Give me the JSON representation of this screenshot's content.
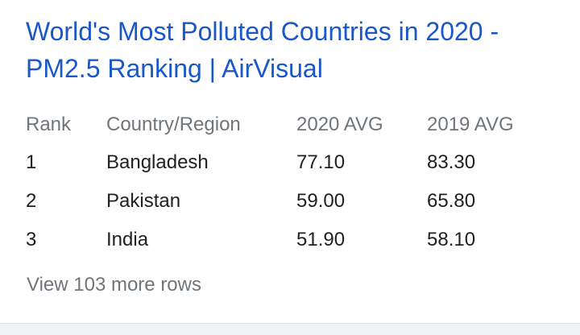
{
  "result": {
    "title": "World's Most Polluted Countries in 2020 - PM2.5 Ranking | AirVisual",
    "table": {
      "header": [
        "Rank",
        "Country/Region",
        "2020 AVG",
        "2019 AVG"
      ],
      "rows": [
        [
          "1",
          "Bangladesh",
          "77.10",
          "83.30"
        ],
        [
          "2",
          "Pakistan",
          "59.00",
          "65.80"
        ],
        [
          "3",
          "India",
          "51.90",
          "58.10"
        ]
      ]
    },
    "more_link": "View 103 more rows"
  }
}
